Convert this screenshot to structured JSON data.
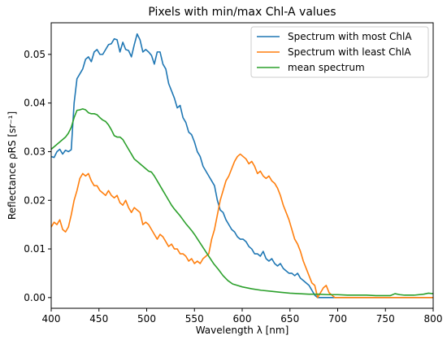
{
  "chart_data": {
    "type": "line",
    "title": "Pixels with min/max Chl-A values",
    "xlabel": "Wavelength λ [nm]",
    "ylabel": "Reflectance ρRS [sr⁻¹]",
    "xlim": [
      400,
      800
    ],
    "ylim": [
      -0.0022,
      0.0565
    ],
    "xticks": [
      400,
      450,
      500,
      550,
      600,
      650,
      700,
      750,
      800
    ],
    "yticks": [
      0.0,
      0.01,
      0.02,
      0.03,
      0.04,
      0.05
    ],
    "ytick_labels": [
      "0.00",
      "0.01",
      "0.02",
      "0.03",
      "0.04",
      "0.05"
    ],
    "grid": false,
    "legend_position": "upper-right",
    "series": [
      {
        "name": "Spectrum with most ChlA",
        "color": "#1f77b4",
        "x": [
          400,
          403,
          406,
          409,
          412,
          415,
          418,
          421,
          424,
          427,
          430,
          433,
          436,
          439,
          442,
          445,
          448,
          451,
          454,
          457,
          460,
          463,
          466,
          469,
          472,
          475,
          478,
          481,
          484,
          487,
          490,
          493,
          496,
          499,
          502,
          505,
          508,
          511,
          514,
          517,
          520,
          523,
          526,
          529,
          532,
          535,
          538,
          541,
          544,
          547,
          550,
          553,
          556,
          559,
          562,
          565,
          568,
          571,
          574,
          577,
          580,
          583,
          586,
          589,
          592,
          595,
          598,
          601,
          604,
          607,
          610,
          613,
          616,
          619,
          622,
          625,
          628,
          631,
          634,
          637,
          640,
          643,
          646,
          649,
          652,
          655,
          658,
          661,
          664,
          667,
          670,
          673,
          676,
          679,
          682,
          685,
          688,
          691,
          694,
          697,
          700,
          710,
          720,
          730,
          740,
          750,
          760,
          770,
          780,
          790,
          800
        ],
        "y": [
          0.029,
          0.0288,
          0.03,
          0.0305,
          0.0295,
          0.0303,
          0.03,
          0.0304,
          0.04,
          0.045,
          0.046,
          0.047,
          0.049,
          0.0495,
          0.0485,
          0.0505,
          0.051,
          0.05,
          0.05,
          0.051,
          0.052,
          0.0522,
          0.0532,
          0.053,
          0.0505,
          0.0525,
          0.051,
          0.0508,
          0.0495,
          0.052,
          0.0542,
          0.053,
          0.0505,
          0.051,
          0.0505,
          0.0498,
          0.048,
          0.0505,
          0.0505,
          0.048,
          0.047,
          0.044,
          0.0425,
          0.041,
          0.039,
          0.0395,
          0.037,
          0.036,
          0.034,
          0.0335,
          0.032,
          0.03,
          0.029,
          0.027,
          0.026,
          0.025,
          0.024,
          0.023,
          0.02,
          0.018,
          0.0175,
          0.016,
          0.015,
          0.014,
          0.0135,
          0.0125,
          0.012,
          0.012,
          0.0115,
          0.0105,
          0.01,
          0.009,
          0.009,
          0.0085,
          0.0095,
          0.008,
          0.0075,
          0.008,
          0.007,
          0.0065,
          0.007,
          0.006,
          0.0055,
          0.005,
          0.005,
          0.0045,
          0.005,
          0.004,
          0.0035,
          0.003,
          0.0025,
          0.0015,
          0.0005,
          0.0,
          0.0,
          0.0,
          0.0,
          0.0,
          0.0,
          0.0,
          0.0,
          0.0,
          0.0,
          0.0,
          0.0,
          0.0,
          0.0,
          0.0,
          0.0,
          0.0,
          0.0
        ]
      },
      {
        "name": "Spectrum with least ChlA",
        "color": "#ff7f0e",
        "x": [
          400,
          403,
          406,
          409,
          412,
          415,
          418,
          421,
          424,
          427,
          430,
          433,
          436,
          439,
          442,
          445,
          448,
          451,
          454,
          457,
          460,
          463,
          466,
          469,
          472,
          475,
          478,
          481,
          484,
          487,
          490,
          493,
          496,
          499,
          502,
          505,
          508,
          511,
          514,
          517,
          520,
          523,
          526,
          529,
          532,
          535,
          538,
          541,
          544,
          547,
          550,
          553,
          556,
          559,
          562,
          565,
          568,
          571,
          574,
          577,
          580,
          583,
          586,
          589,
          592,
          595,
          598,
          601,
          604,
          607,
          610,
          613,
          616,
          619,
          622,
          625,
          628,
          631,
          634,
          637,
          640,
          643,
          646,
          649,
          652,
          655,
          658,
          661,
          664,
          667,
          670,
          673,
          676,
          679,
          682,
          685,
          688,
          691,
          694,
          697,
          700,
          710,
          720,
          730,
          740,
          750,
          760,
          770,
          780,
          790,
          800
        ],
        "y": [
          0.0145,
          0.0155,
          0.015,
          0.016,
          0.014,
          0.0135,
          0.0145,
          0.017,
          0.02,
          0.022,
          0.0245,
          0.0255,
          0.025,
          0.0255,
          0.024,
          0.023,
          0.023,
          0.022,
          0.0215,
          0.021,
          0.022,
          0.021,
          0.0205,
          0.021,
          0.0195,
          0.019,
          0.02,
          0.0185,
          0.0175,
          0.0185,
          0.018,
          0.0175,
          0.015,
          0.0155,
          0.015,
          0.014,
          0.013,
          0.012,
          0.013,
          0.0125,
          0.0115,
          0.0105,
          0.011,
          0.01,
          0.01,
          0.009,
          0.009,
          0.0085,
          0.0075,
          0.008,
          0.007,
          0.0075,
          0.007,
          0.008,
          0.0085,
          0.009,
          0.012,
          0.014,
          0.017,
          0.02,
          0.022,
          0.024,
          0.025,
          0.0265,
          0.028,
          0.029,
          0.0295,
          0.029,
          0.0285,
          0.0275,
          0.028,
          0.027,
          0.0255,
          0.026,
          0.025,
          0.0245,
          0.025,
          0.024,
          0.0235,
          0.0225,
          0.021,
          0.019,
          0.0175,
          0.016,
          0.014,
          0.012,
          0.011,
          0.0095,
          0.0075,
          0.006,
          0.0045,
          0.003,
          0.0025,
          0.0,
          0.001,
          0.002,
          0.0025,
          0.001,
          0.0005,
          0.0,
          0.0,
          0.0,
          0.0,
          0.0,
          0.0,
          0.0,
          0.0,
          0.0,
          0.0,
          0.0,
          0.0
        ]
      },
      {
        "name": "mean spectrum",
        "color": "#2ca02c",
        "x": [
          400,
          403,
          406,
          409,
          412,
          415,
          418,
          421,
          424,
          427,
          430,
          433,
          436,
          439,
          442,
          445,
          448,
          451,
          454,
          457,
          460,
          463,
          466,
          469,
          472,
          475,
          478,
          481,
          484,
          487,
          490,
          493,
          496,
          499,
          502,
          505,
          508,
          511,
          514,
          517,
          520,
          523,
          526,
          529,
          532,
          535,
          538,
          541,
          544,
          547,
          550,
          555,
          560,
          565,
          570,
          575,
          580,
          585,
          590,
          595,
          600,
          610,
          620,
          630,
          640,
          650,
          660,
          670,
          680,
          690,
          700,
          710,
          720,
          730,
          740,
          750,
          755,
          760,
          765,
          770,
          780,
          790,
          795,
          800
        ],
        "y": [
          0.0305,
          0.031,
          0.0315,
          0.032,
          0.0325,
          0.033,
          0.0338,
          0.035,
          0.037,
          0.0385,
          0.0386,
          0.0388,
          0.0386,
          0.038,
          0.0378,
          0.0378,
          0.0376,
          0.037,
          0.0365,
          0.0362,
          0.0355,
          0.0345,
          0.0333,
          0.033,
          0.033,
          0.0325,
          0.0315,
          0.0305,
          0.0295,
          0.0285,
          0.028,
          0.0275,
          0.027,
          0.0265,
          0.026,
          0.0258,
          0.025,
          0.024,
          0.023,
          0.022,
          0.021,
          0.02,
          0.019,
          0.0182,
          0.0175,
          0.0168,
          0.016,
          0.0152,
          0.0145,
          0.0138,
          0.013,
          0.0115,
          0.01,
          0.0085,
          0.007,
          0.0058,
          0.0045,
          0.0035,
          0.0028,
          0.0025,
          0.0022,
          0.0018,
          0.0015,
          0.0013,
          0.0011,
          0.0009,
          0.0008,
          0.0007,
          0.0007,
          0.0006,
          0.0006,
          0.0005,
          0.0005,
          0.0005,
          0.0004,
          0.0004,
          0.0004,
          0.0008,
          0.0006,
          0.0005,
          0.0005,
          0.0007,
          0.0009,
          0.0008
        ]
      }
    ]
  }
}
